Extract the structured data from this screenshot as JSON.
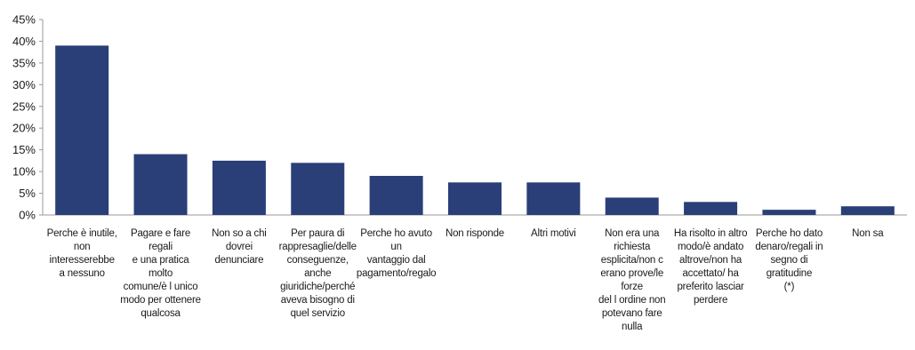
{
  "chart_data": {
    "type": "bar",
    "categories": [
      "Perche è inutile,\nnon interesserebbe\na nessuno",
      "Pagare e fare regali\ne una pratica molto\ncomune/è l unico\nmodo per ottenere\nqualcosa",
      "Non so a chi dovrei\ndenunciare",
      "Per paura di\nrappresaglie/delle\nconseguenze,\nanche\ngiuridiche/perché\naveva bisogno di\nquel servizio",
      "Perche ho avuto un\nvantaggio dal\npagamento/regalo",
      "Non risponde",
      "Altri motivi",
      "Non era una\nrichiesta\nesplicita/non c\nerano prove/le forze\ndel l ordine non\npotevano fare nulla",
      "Ha risolto in altro\nmodo/è andato\naltrove/non ha\naccettato/ ha\npreferito lasciar\nperdere",
      "Perche ho dato\ndenaro/regali in\nsegno di gratitudine\n(*)",
      "Non sa"
    ],
    "values": [
      39,
      14,
      12.5,
      12,
      9,
      7.5,
      7.5,
      4,
      3,
      1.2,
      2
    ],
    "ylim": [
      0,
      45
    ],
    "yticks": [
      "0%",
      "5%",
      "10%",
      "15%",
      "20%",
      "25%",
      "30%",
      "35%",
      "40%",
      "45%"
    ],
    "grid": false,
    "colors": {
      "bar": "#2a3e78",
      "axis": "#9a9a9a"
    }
  }
}
